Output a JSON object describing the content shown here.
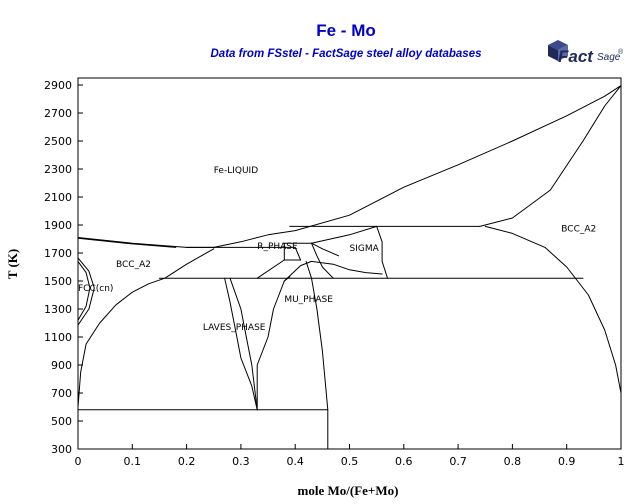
{
  "chart_data": {
    "type": "line",
    "title": "Fe - Mo",
    "subtitle": "Data from FSstel - FactSage steel alloy databases",
    "xlabel": "mole Mo/(Fe+Mo)",
    "ylabel": "T (K)",
    "xlim": [
      0,
      1
    ],
    "ylim": [
      300,
      2950
    ],
    "x_ticks": [
      0,
      0.1,
      0.2,
      0.3,
      0.4,
      0.5,
      0.6,
      0.7,
      0.8,
      0.9,
      1
    ],
    "x_tick_labels": [
      "0",
      "0.1",
      "0.2",
      "0.3",
      "0.4",
      "0.5",
      "0.6",
      "0.7",
      "0.8",
      "0.9",
      "1"
    ],
    "y_ticks": [
      300,
      500,
      700,
      900,
      1100,
      1300,
      1500,
      1700,
      1900,
      2100,
      2300,
      2500,
      2700,
      2900
    ],
    "y_tick_labels": [
      "300",
      "500",
      "700",
      "900",
      "1100",
      "1300",
      "1500",
      "1700",
      "1900",
      "2100",
      "2300",
      "2500",
      "2700",
      "2900"
    ],
    "grid": false,
    "legend": "none",
    "colors": {
      "title": "#0000cc",
      "subtitle": "#0000cc",
      "lines": "#000000",
      "logo": "#1f2a5a"
    },
    "logo": {
      "brand": "Fact",
      "suffix": "Sage",
      "mark": "®"
    },
    "region_labels": [
      {
        "text": "Fe-LIQUID",
        "x": 0.25,
        "y": 2270
      },
      {
        "text": "BCC_A2",
        "x": 0.89,
        "y": 1855
      },
      {
        "text": "BCC_A2",
        "x": 0.07,
        "y": 1600
      },
      {
        "text": "FCC(cn)",
        "x": 0.0,
        "y": 1430
      },
      {
        "text": "R_PHASE",
        "x": 0.33,
        "y": 1730
      },
      {
        "text": "SIGMA",
        "x": 0.5,
        "y": 1715
      },
      {
        "text": "MU_PHASE",
        "x": 0.38,
        "y": 1350
      },
      {
        "text": "LAVES_PHASE",
        "x": 0.23,
        "y": 1150
      }
    ],
    "phase_boundaries": [
      {
        "name": "liquidus-fe-side",
        "points": [
          [
            0,
            1811
          ],
          [
            0.1,
            1770
          ],
          [
            0.2,
            1740
          ],
          [
            0.25,
            1740
          ]
        ]
      },
      {
        "name": "solidus-fe-side",
        "points": [
          [
            0,
            1805
          ],
          [
            0.1,
            1765
          ],
          [
            0.18,
            1740
          ]
        ]
      },
      {
        "name": "liquidus-main",
        "points": [
          [
            0.25,
            1740
          ],
          [
            0.3,
            1780
          ],
          [
            0.35,
            1830
          ],
          [
            0.4,
            1860
          ],
          [
            0.5,
            1970
          ],
          [
            0.6,
            2170
          ],
          [
            0.7,
            2330
          ],
          [
            0.8,
            2500
          ],
          [
            0.9,
            2680
          ],
          [
            0.97,
            2820
          ],
          [
            1.0,
            2896
          ]
        ]
      },
      {
        "name": "solidus-mo-side",
        "points": [
          [
            0.74,
            1890
          ],
          [
            0.8,
            1950
          ],
          [
            0.87,
            2150
          ],
          [
            0.93,
            2500
          ],
          [
            0.97,
            2750
          ],
          [
            1.0,
            2896
          ]
        ]
      },
      {
        "name": "bcc-solvus-fe-side",
        "points": [
          [
            0,
            600
          ],
          [
            0.005,
            850
          ],
          [
            0.015,
            1050
          ],
          [
            0.04,
            1200
          ],
          [
            0.07,
            1330
          ],
          [
            0.1,
            1420
          ],
          [
            0.13,
            1480
          ],
          [
            0.16,
            1520
          ],
          [
            0.2,
            1620
          ],
          [
            0.25,
            1730
          ]
        ]
      },
      {
        "name": "bcc-solvus-mo-side",
        "points": [
          [
            0.75,
            1890
          ],
          [
            0.8,
            1840
          ],
          [
            0.86,
            1740
          ],
          [
            0.9,
            1600
          ],
          [
            0.94,
            1400
          ],
          [
            0.97,
            1150
          ],
          [
            0.99,
            900
          ],
          [
            1.0,
            700
          ]
        ]
      },
      {
        "name": "peritectic-1890",
        "points": [
          [
            0.39,
            1890
          ],
          [
            0.74,
            1890
          ]
        ]
      },
      {
        "name": "isotherm-1740",
        "points": [
          [
            0.2,
            1740
          ],
          [
            0.4,
            1740
          ]
        ]
      },
      {
        "name": "isotherm-1770",
        "points": [
          [
            0.38,
            1770
          ],
          [
            0.43,
            1770
          ]
        ]
      },
      {
        "name": "isotherm-1520",
        "points": [
          [
            0.15,
            1520
          ],
          [
            0.93,
            1520
          ]
        ]
      },
      {
        "name": "isotherm-580",
        "points": [
          [
            0,
            580
          ],
          [
            0.46,
            580
          ]
        ]
      },
      {
        "name": "gamma-loop-outer",
        "points": [
          [
            0,
            1665
          ],
          [
            0.02,
            1570
          ],
          [
            0.03,
            1450
          ],
          [
            0.02,
            1300
          ],
          [
            0,
            1185
          ]
        ]
      },
      {
        "name": "gamma-loop-inner",
        "points": [
          [
            0,
            1640
          ],
          [
            0.015,
            1560
          ],
          [
            0.022,
            1450
          ],
          [
            0.015,
            1320
          ],
          [
            0,
            1220
          ]
        ]
      },
      {
        "name": "laves-left",
        "points": [
          [
            0.27,
            1520
          ],
          [
            0.28,
            1350
          ],
          [
            0.29,
            1150
          ],
          [
            0.3,
            950
          ],
          [
            0.32,
            750
          ],
          [
            0.33,
            580
          ]
        ]
      },
      {
        "name": "laves-right",
        "points": [
          [
            0.28,
            1520
          ],
          [
            0.3,
            1300
          ],
          [
            0.31,
            1100
          ],
          [
            0.32,
            900
          ],
          [
            0.33,
            580
          ]
        ]
      },
      {
        "name": "mu-left",
        "points": [
          [
            0.39,
            1530
          ],
          [
            0.38,
            1500
          ],
          [
            0.36,
            1300
          ],
          [
            0.35,
            1100
          ],
          [
            0.33,
            900
          ],
          [
            0.33,
            580
          ]
        ]
      },
      {
        "name": "mu-right",
        "points": [
          [
            0.42,
            1640
          ],
          [
            0.43,
            1520
          ],
          [
            0.44,
            1300
          ],
          [
            0.45,
            1000
          ],
          [
            0.46,
            580
          ],
          [
            0.46,
            300
          ]
        ]
      },
      {
        "name": "r-phase-box-left",
        "points": [
          [
            0.38,
            1770
          ],
          [
            0.38,
            1650
          ]
        ]
      },
      {
        "name": "r-phase-left-diag",
        "points": [
          [
            0.33,
            1520
          ],
          [
            0.38,
            1650
          ]
        ]
      },
      {
        "name": "r-phase-right",
        "points": [
          [
            0.4,
            1740
          ],
          [
            0.41,
            1650
          ]
        ]
      },
      {
        "name": "r-phase-base",
        "points": [
          [
            0.38,
            1650
          ],
          [
            0.41,
            1650
          ]
        ]
      },
      {
        "name": "sigma-left-upper",
        "points": [
          [
            0.43,
            1770
          ],
          [
            0.45,
            1730
          ],
          [
            0.48,
            1680
          ]
        ]
      },
      {
        "name": "sigma-left-lower",
        "points": [
          [
            0.43,
            1770
          ],
          [
            0.44,
            1680
          ],
          [
            0.45,
            1600
          ],
          [
            0.47,
            1520
          ]
        ]
      },
      {
        "name": "sigma-right",
        "points": [
          [
            0.55,
            1890
          ],
          [
            0.56,
            1780
          ],
          [
            0.56,
            1640
          ],
          [
            0.57,
            1520
          ]
        ]
      },
      {
        "name": "sigma-top",
        "points": [
          [
            0.43,
            1770
          ],
          [
            0.5,
            1830
          ],
          [
            0.55,
            1890
          ]
        ]
      },
      {
        "name": "mu-bottom-curve",
        "points": [
          [
            0.38,
            1500
          ],
          [
            0.41,
            1610
          ],
          [
            0.43,
            1640
          ],
          [
            0.47,
            1620
          ],
          [
            0.5,
            1580
          ],
          [
            0.53,
            1560
          ],
          [
            0.56,
            1550
          ]
        ]
      }
    ]
  }
}
